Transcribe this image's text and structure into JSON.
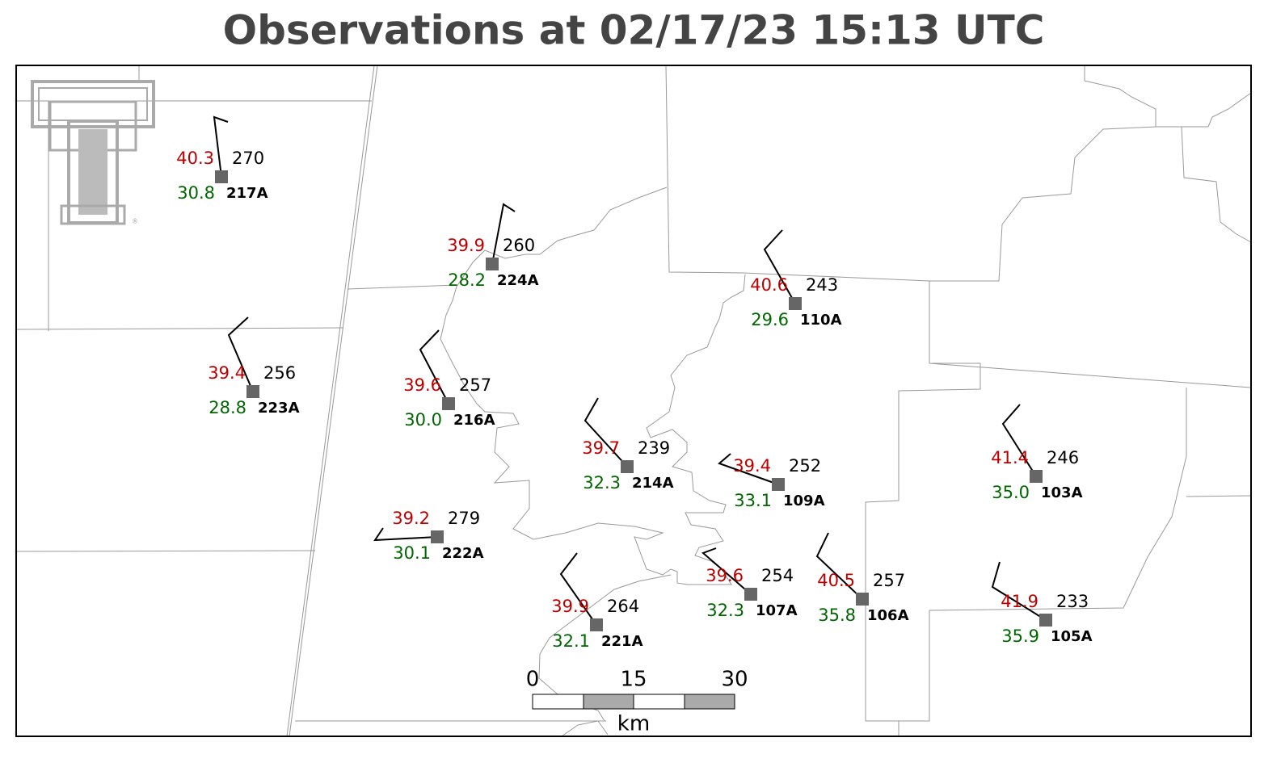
{
  "title": "Observations at 02/17/23 15:13 UTC",
  "stations": [
    {
      "id": "217A",
      "temperature": "40.3",
      "dewpoint": "30.8",
      "value": "270"
    },
    {
      "id": "224A",
      "temperature": "39.9",
      "dewpoint": "28.2",
      "value": "260"
    },
    {
      "id": "110A",
      "temperature": "40.6",
      "dewpoint": "29.6",
      "value": "243"
    },
    {
      "id": "223A",
      "temperature": "39.4",
      "dewpoint": "28.8",
      "value": "256"
    },
    {
      "id": "216A",
      "temperature": "39.6",
      "dewpoint": "30.0",
      "value": "257"
    },
    {
      "id": "214A",
      "temperature": "39.7",
      "dewpoint": "32.3",
      "value": "239"
    },
    {
      "id": "109A",
      "temperature": "39.4",
      "dewpoint": "33.1",
      "value": "252"
    },
    {
      "id": "103A",
      "temperature": "41.4",
      "dewpoint": "35.0",
      "value": "246"
    },
    {
      "id": "222A",
      "temperature": "39.2",
      "dewpoint": "30.1",
      "value": "279"
    },
    {
      "id": "107A",
      "temperature": "39.6",
      "dewpoint": "32.3",
      "value": "254"
    },
    {
      "id": "106A",
      "temperature": "40.5",
      "dewpoint": "35.8",
      "value": "257"
    },
    {
      "id": "221A",
      "temperature": "39.9",
      "dewpoint": "32.1",
      "value": "264"
    },
    {
      "id": "105A",
      "temperature": "41.9",
      "dewpoint": "35.9",
      "value": "233"
    }
  ],
  "scale_bar": {
    "ticks": [
      "0",
      "15",
      "30"
    ],
    "unit": "km"
  }
}
